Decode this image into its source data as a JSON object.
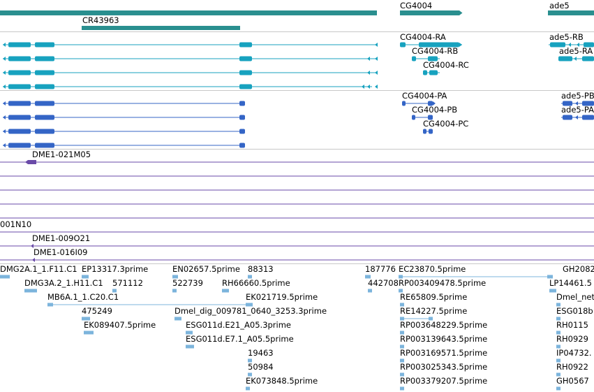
{
  "colors": {
    "gene": "#2a8f8f",
    "mrna": "#17a2bf",
    "cds": "#3465c6",
    "clone": "#6a4aa8",
    "est": "#7cb4dc",
    "separator": "#c8c8c8"
  },
  "tracks": {
    "genes": {
      "labels": [
        {
          "id": "cr43963",
          "text": "CR43963"
        },
        {
          "id": "cg4004",
          "text": "CG4004"
        },
        {
          "id": "ade5",
          "text": "ade5"
        }
      ]
    },
    "transcripts": {
      "labels": [
        {
          "id": "cg4004-ra",
          "text": "CG4004-RA"
        },
        {
          "id": "cg4004-rb",
          "text": "CG4004-RB"
        },
        {
          "id": "cg4004-rc",
          "text": "CG4004-RC"
        },
        {
          "id": "ade5-rb",
          "text": "ade5-RB"
        },
        {
          "id": "ade5-ra",
          "text": "ade5-RA"
        }
      ]
    },
    "proteins": {
      "labels": [
        {
          "id": "cg4004-pa",
          "text": "CG4004-PA"
        },
        {
          "id": "cg4004-pb",
          "text": "CG4004-PB"
        },
        {
          "id": "cg4004-pc",
          "text": "CG4004-PC"
        },
        {
          "id": "ade5-pb",
          "text": "ade5-PB"
        },
        {
          "id": "ade5-pa",
          "text": "ade5-PA"
        }
      ]
    },
    "clones": {
      "labels": [
        {
          "id": "dme1-021m05",
          "text": "DME1-021M05"
        },
        {
          "id": "001n10",
          "text": "001N10"
        },
        {
          "id": "dme1-009o21",
          "text": "DME1-009O21"
        },
        {
          "id": "dme1-016i09",
          "text": "DME1-016I09"
        }
      ]
    },
    "ests": {
      "labels": [
        {
          "id": "dmg2a",
          "text": "DMG2A.1_1.F11.C1"
        },
        {
          "id": "ep13317",
          "text": "EP13317.3prime"
        },
        {
          "id": "en02657",
          "text": "EN02657.5prime"
        },
        {
          "id": "e88313",
          "text": "88313"
        },
        {
          "id": "e187776",
          "text": "187776"
        },
        {
          "id": "ec23870",
          "text": "EC23870.5prime"
        },
        {
          "id": "gh2082",
          "text": "GH2082"
        },
        {
          "id": "dmg3a",
          "text": "DMG3A.2_1.H11.C1"
        },
        {
          "id": "e571112",
          "text": "571112"
        },
        {
          "id": "e522739",
          "text": "522739"
        },
        {
          "id": "rh66660",
          "text": "RH66660.5prime"
        },
        {
          "id": "e442708",
          "text": "442708"
        },
        {
          "id": "rp003409478",
          "text": "RP003409478.5prime"
        },
        {
          "id": "lp14461",
          "text": "LP14461.5"
        },
        {
          "id": "mb6a",
          "text": "MB6A.1_1.C20.C1"
        },
        {
          "id": "ek021719",
          "text": "EK021719.5prime"
        },
        {
          "id": "re65809",
          "text": "RE65809.5prime"
        },
        {
          "id": "dmel-net",
          "text": "Dmel_net"
        },
        {
          "id": "e475249",
          "text": "475249"
        },
        {
          "id": "dmel-dig",
          "text": "Dmel_dig_009781_0640_3253.3prime"
        },
        {
          "id": "re14227",
          "text": "RE14227.5prime"
        },
        {
          "id": "esg018",
          "text": "ESG018b"
        },
        {
          "id": "ek089407",
          "text": "EK089407.5prime"
        },
        {
          "id": "esg011d-e21",
          "text": "ESG011d.E21_A05.3prime"
        },
        {
          "id": "rp003648229",
          "text": "RP003648229.5prime"
        },
        {
          "id": "rh0115",
          "text": "RH0115"
        },
        {
          "id": "esg011d-e7",
          "text": "ESG011d.E7.1_A05.5prime"
        },
        {
          "id": "rp003139643",
          "text": "RP003139643.5prime"
        },
        {
          "id": "rh0929",
          "text": "RH0929"
        },
        {
          "id": "e19463",
          "text": "19463"
        },
        {
          "id": "rp003169571",
          "text": "RP003169571.5prime"
        },
        {
          "id": "ip04732",
          "text": "IP04732."
        },
        {
          "id": "e50984",
          "text": "50984"
        },
        {
          "id": "rp003025343",
          "text": "RP003025343.5prime"
        },
        {
          "id": "rh0922",
          "text": "RH0922"
        },
        {
          "id": "ek073848",
          "text": "EK073848.5prime"
        },
        {
          "id": "rp003379207",
          "text": "RP003379207.5prime"
        },
        {
          "id": "gh0567",
          "text": "GH0567"
        }
      ]
    }
  }
}
